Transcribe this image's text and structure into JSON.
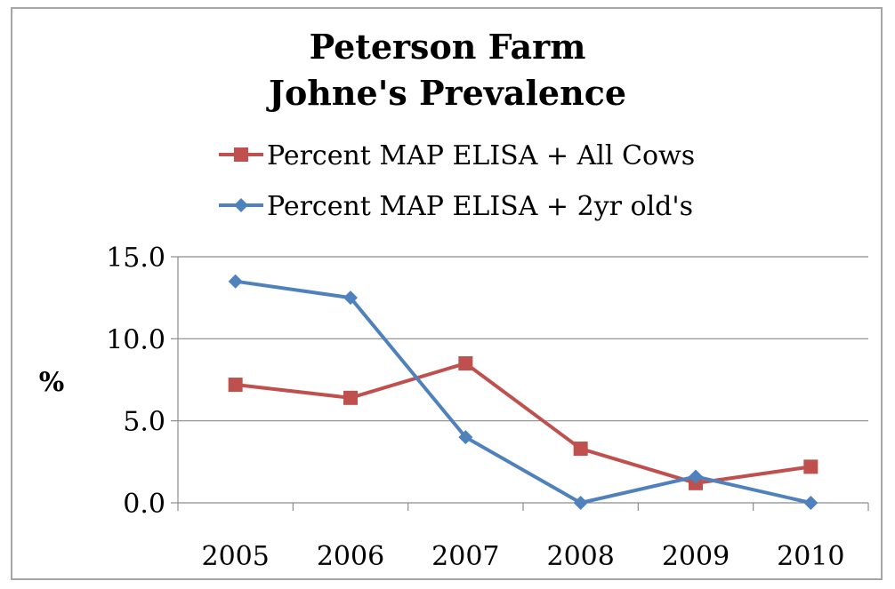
{
  "chart_data": {
    "type": "line",
    "title_lines": [
      "Peterson Farm",
      "Johne's Prevalence"
    ],
    "xlabel": "",
    "ylabel": "%",
    "categories": [
      "2005",
      "2006",
      "2007",
      "2008",
      "2009",
      "2010"
    ],
    "ylim": [
      0,
      15
    ],
    "yticks": [
      0,
      5,
      10,
      15
    ],
    "ytick_labels": [
      "0.0",
      "5.0",
      "10.0",
      "15.0"
    ],
    "grid": true,
    "legend_position": "top",
    "series": [
      {
        "name": "Percent MAP ELISA + All Cows",
        "values": [
          7.2,
          6.4,
          8.5,
          3.3,
          1.2,
          2.2
        ],
        "color": "#c0504d",
        "marker": "square"
      },
      {
        "name": "Percent MAP ELISA + 2yr old's",
        "values": [
          13.5,
          12.5,
          4.0,
          0.0,
          1.6,
          0.0
        ],
        "color": "#4f81bd",
        "marker": "diamond"
      }
    ]
  }
}
